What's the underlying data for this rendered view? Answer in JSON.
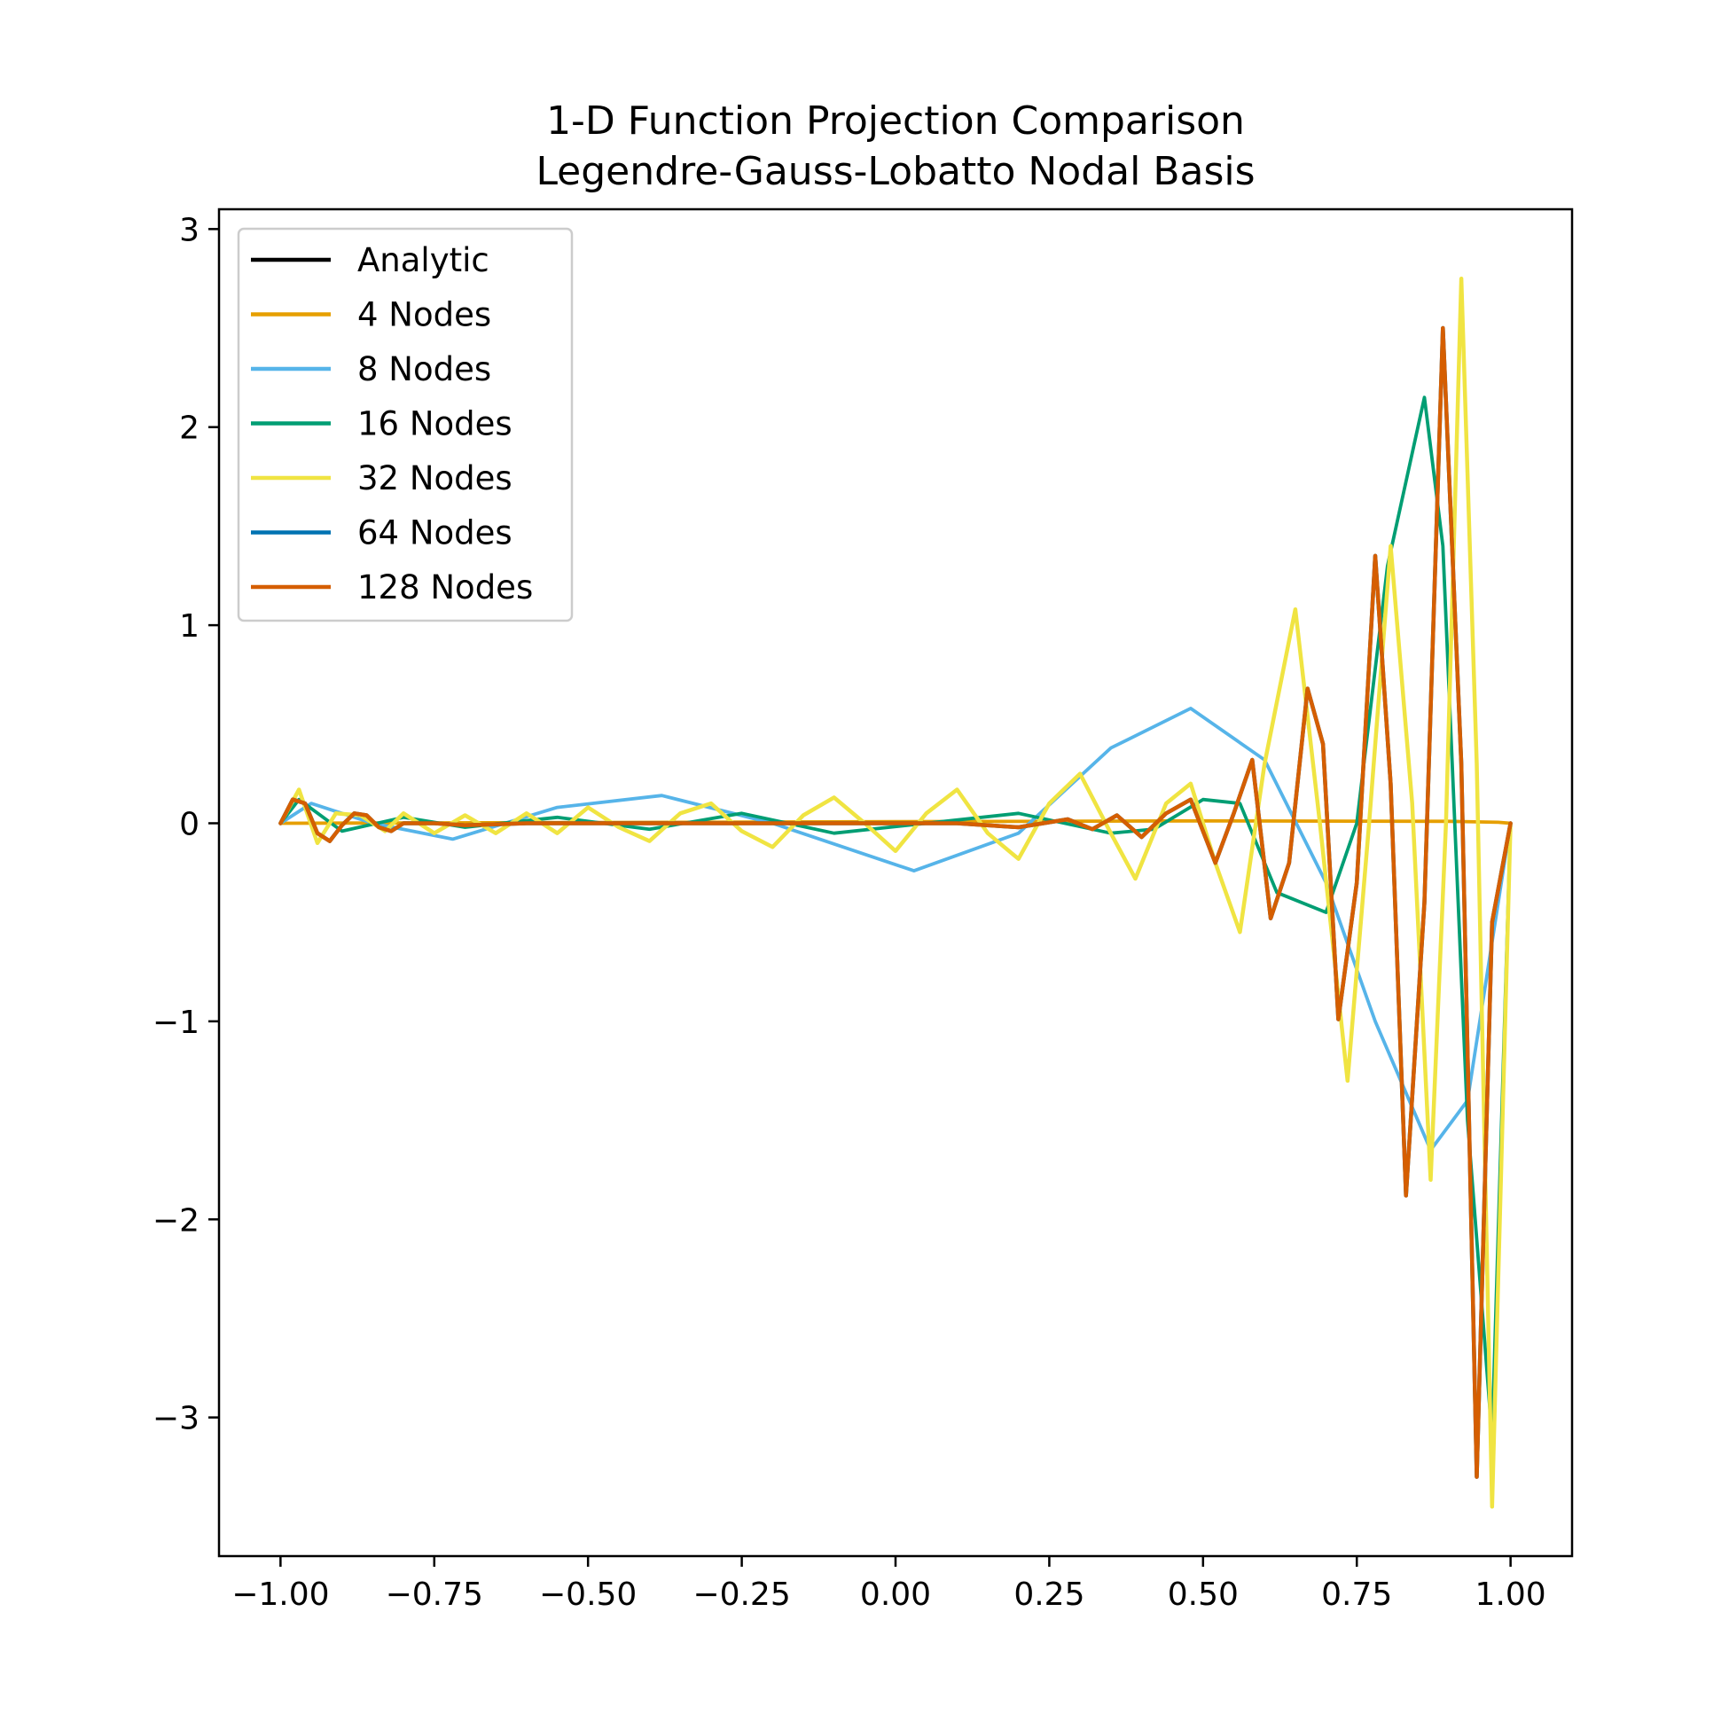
{
  "chart_data": {
    "type": "line",
    "title": [
      "1-D Function Projection Comparison",
      "Legendre-Gauss-Lobatto Nodal Basis"
    ],
    "xlabel": "",
    "ylabel": "",
    "xlim": [
      -1.1,
      1.1
    ],
    "ylim": [
      -3.7,
      3.1
    ],
    "xticks": [
      -1.0,
      -0.75,
      -0.5,
      -0.25,
      0.0,
      0.25,
      0.5,
      0.75,
      1.0
    ],
    "xtick_labels": [
      "−1.00",
      "−0.75",
      "−0.50",
      "−0.25",
      "0.00",
      "0.25",
      "0.50",
      "0.75",
      "1.00"
    ],
    "yticks": [
      3,
      2,
      1,
      0,
      -1,
      -2,
      -3
    ],
    "ytick_labels": [
      "3",
      "2",
      "1",
      "0",
      "−1",
      "−2",
      "−3"
    ],
    "grid": false,
    "legend_position": "top-left",
    "series": [
      {
        "name": "Analytic",
        "color": "#000000",
        "x": [
          -1.0,
          -0.98,
          -0.96,
          -0.94,
          -0.92,
          -0.9,
          -0.88,
          -0.86,
          -0.84,
          -0.82,
          -0.8,
          -0.75,
          -0.7,
          -0.6,
          -0.5,
          -0.4,
          -0.3,
          -0.2,
          -0.1,
          0.0,
          0.1,
          0.2,
          0.24,
          0.28,
          0.32,
          0.36,
          0.4,
          0.44,
          0.48,
          0.52,
          0.55,
          0.58,
          0.61,
          0.64,
          0.67,
          0.695,
          0.72,
          0.75,
          0.78,
          0.805,
          0.83,
          0.86,
          0.89,
          0.92,
          0.945,
          0.97,
          1.0
        ],
        "y": [
          0.0,
          0.12,
          0.1,
          -0.05,
          -0.09,
          -0.01,
          0.05,
          0.04,
          -0.02,
          -0.04,
          0.0,
          0.0,
          -0.01,
          0.0,
          0.0,
          0.0,
          0.0,
          0.0,
          0.0,
          0.0,
          0.0,
          -0.02,
          0.0,
          0.02,
          -0.03,
          0.04,
          -0.07,
          0.05,
          0.12,
          -0.2,
          0.05,
          0.32,
          -0.48,
          -0.2,
          0.68,
          0.4,
          -0.99,
          -0.3,
          1.35,
          0.2,
          -1.88,
          -0.4,
          2.5,
          0.3,
          -3.3,
          -0.5,
          0.0
        ]
      },
      {
        "name": "4 Nodes",
        "color": "#E69F00",
        "x": [
          -1.0,
          -0.5,
          0.0,
          0.5,
          0.9,
          0.98,
          1.0
        ],
        "y": [
          0.0,
          0.004,
          0.008,
          0.012,
          0.01,
          0.005,
          0.0
        ]
      },
      {
        "name": "8 Nodes",
        "color": "#56B4E9",
        "x": [
          -1.0,
          -0.95,
          -0.85,
          -0.72,
          -0.55,
          -0.38,
          -0.2,
          0.03,
          0.2,
          0.35,
          0.48,
          0.6,
          0.7,
          0.78,
          0.87,
          0.93,
          0.97,
          1.0
        ],
        "y": [
          0.0,
          0.1,
          0.0,
          -0.08,
          0.08,
          0.14,
          0.0,
          -0.24,
          -0.05,
          0.38,
          0.58,
          0.32,
          -0.3,
          -1.0,
          -1.65,
          -1.4,
          -0.6,
          0.0
        ]
      },
      {
        "name": "16 Nodes",
        "color": "#009E73",
        "x": [
          -1.0,
          -0.97,
          -0.9,
          -0.8,
          -0.7,
          -0.55,
          -0.4,
          -0.25,
          -0.1,
          0.05,
          0.2,
          0.35,
          0.42,
          0.5,
          0.56,
          0.62,
          0.7,
          0.75,
          0.8,
          0.86,
          0.89,
          0.93,
          0.97,
          1.0
        ],
        "y": [
          0.0,
          0.12,
          -0.04,
          0.03,
          -0.02,
          0.03,
          -0.03,
          0.05,
          -0.05,
          0.0,
          0.05,
          -0.05,
          -0.03,
          0.12,
          0.1,
          -0.35,
          -0.45,
          0.0,
          1.3,
          2.15,
          1.4,
          -1.5,
          -3.1,
          0.0
        ]
      },
      {
        "name": "32 Nodes",
        "color": "#F0E442",
        "x": [
          -1.0,
          -0.97,
          -0.94,
          -0.91,
          -0.87,
          -0.83,
          -0.8,
          -0.75,
          -0.7,
          -0.65,
          -0.6,
          -0.55,
          -0.5,
          -0.45,
          -0.4,
          -0.35,
          -0.3,
          -0.25,
          -0.2,
          -0.15,
          -0.1,
          -0.05,
          0.0,
          0.05,
          0.1,
          0.15,
          0.2,
          0.25,
          0.3,
          0.35,
          0.39,
          0.44,
          0.48,
          0.52,
          0.56,
          0.6,
          0.65,
          0.69,
          0.735,
          0.77,
          0.805,
          0.84,
          0.87,
          0.895,
          0.92,
          0.945,
          0.97,
          1.0
        ],
        "y": [
          0.0,
          0.17,
          -0.1,
          0.05,
          0.04,
          -0.04,
          0.05,
          -0.05,
          0.04,
          -0.05,
          0.05,
          -0.05,
          0.08,
          -0.02,
          -0.09,
          0.05,
          0.1,
          -0.04,
          -0.12,
          0.04,
          0.13,
          0.0,
          -0.14,
          0.05,
          0.17,
          -0.05,
          -0.18,
          0.1,
          0.25,
          -0.05,
          -0.28,
          0.1,
          0.2,
          -0.2,
          -0.55,
          0.3,
          1.08,
          0.0,
          -1.3,
          0.0,
          1.4,
          0.1,
          -1.8,
          0.0,
          2.75,
          0.3,
          -3.45,
          0.0
        ]
      },
      {
        "name": "64 Nodes",
        "color": "#0072B2",
        "x": [
          -1.0,
          -0.98,
          -0.96,
          -0.94,
          -0.92,
          -0.9,
          -0.88,
          -0.86,
          -0.84,
          -0.82,
          -0.8,
          -0.75,
          -0.7,
          -0.6,
          -0.5,
          -0.4,
          -0.3,
          -0.2,
          -0.1,
          0.0,
          0.1,
          0.2,
          0.24,
          0.28,
          0.32,
          0.36,
          0.4,
          0.44,
          0.48,
          0.52,
          0.55,
          0.58,
          0.61,
          0.64,
          0.67,
          0.695,
          0.72,
          0.75,
          0.78,
          0.805,
          0.83,
          0.86,
          0.89,
          0.92,
          0.945,
          0.97,
          1.0
        ],
        "y": [
          0.0,
          0.12,
          0.1,
          -0.05,
          -0.09,
          -0.01,
          0.05,
          0.04,
          -0.02,
          -0.04,
          0.0,
          0.0,
          -0.01,
          0.0,
          0.0,
          0.0,
          0.0,
          0.0,
          0.0,
          0.0,
          0.0,
          -0.02,
          0.0,
          0.02,
          -0.03,
          0.04,
          -0.07,
          0.05,
          0.12,
          -0.2,
          0.05,
          0.32,
          -0.48,
          -0.2,
          0.68,
          0.4,
          -0.99,
          -0.3,
          1.35,
          0.2,
          -1.88,
          -0.4,
          2.5,
          0.3,
          -3.3,
          -0.5,
          0.0
        ]
      },
      {
        "name": "128 Nodes",
        "color": "#D55E00",
        "x": [
          -1.0,
          -0.98,
          -0.96,
          -0.94,
          -0.92,
          -0.9,
          -0.88,
          -0.86,
          -0.84,
          -0.82,
          -0.8,
          -0.75,
          -0.7,
          -0.6,
          -0.5,
          -0.4,
          -0.3,
          -0.2,
          -0.1,
          0.0,
          0.1,
          0.2,
          0.24,
          0.28,
          0.32,
          0.36,
          0.4,
          0.44,
          0.48,
          0.52,
          0.55,
          0.58,
          0.61,
          0.64,
          0.67,
          0.695,
          0.72,
          0.75,
          0.78,
          0.805,
          0.83,
          0.86,
          0.89,
          0.92,
          0.945,
          0.97,
          1.0
        ],
        "y": [
          0.0,
          0.12,
          0.1,
          -0.05,
          -0.09,
          -0.01,
          0.05,
          0.04,
          -0.02,
          -0.04,
          0.0,
          0.0,
          -0.01,
          0.0,
          0.0,
          0.0,
          0.0,
          0.0,
          0.0,
          0.0,
          0.0,
          -0.02,
          0.0,
          0.02,
          -0.03,
          0.04,
          -0.07,
          0.05,
          0.12,
          -0.2,
          0.05,
          0.32,
          -0.48,
          -0.2,
          0.68,
          0.4,
          -0.99,
          -0.3,
          1.35,
          0.2,
          -1.88,
          -0.4,
          2.5,
          0.3,
          -3.3,
          -0.5,
          0.0
        ]
      }
    ]
  }
}
